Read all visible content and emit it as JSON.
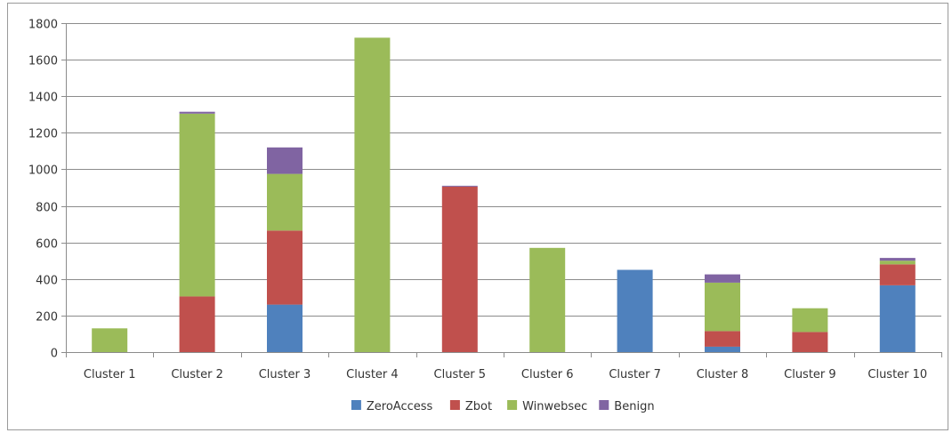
{
  "chart_data": {
    "type": "bar",
    "stacked": true,
    "categories": [
      "Cluster 1",
      "Cluster 2",
      "Cluster 3",
      "Cluster 4",
      "Cluster 5",
      "Cluster 6",
      "Cluster 7",
      "Cluster 8",
      "Cluster 9",
      "Cluster 10"
    ],
    "series": [
      {
        "name": "ZeroAccess",
        "color": "#4f81bd",
        "values": [
          0,
          0,
          260,
          0,
          0,
          0,
          450,
          30,
          0,
          365
        ]
      },
      {
        "name": "Zbot",
        "color": "#c0504d",
        "values": [
          0,
          305,
          405,
          0,
          905,
          0,
          0,
          85,
          110,
          115
        ]
      },
      {
        "name": "Winwebsec",
        "color": "#9bbb59",
        "values": [
          130,
          1000,
          310,
          1720,
          0,
          570,
          0,
          265,
          130,
          20
        ]
      },
      {
        "name": "Benign",
        "color": "#8064a2",
        "values": [
          0,
          10,
          145,
          0,
          5,
          0,
          0,
          45,
          0,
          15
        ]
      }
    ],
    "ylim": [
      0,
      1800
    ],
    "yticks": [
      0,
      200,
      400,
      600,
      800,
      1000,
      1200,
      1400,
      1600,
      1800
    ],
    "grid": true,
    "legend_position": "bottom",
    "title": "",
    "xlabel": "",
    "ylabel": ""
  }
}
